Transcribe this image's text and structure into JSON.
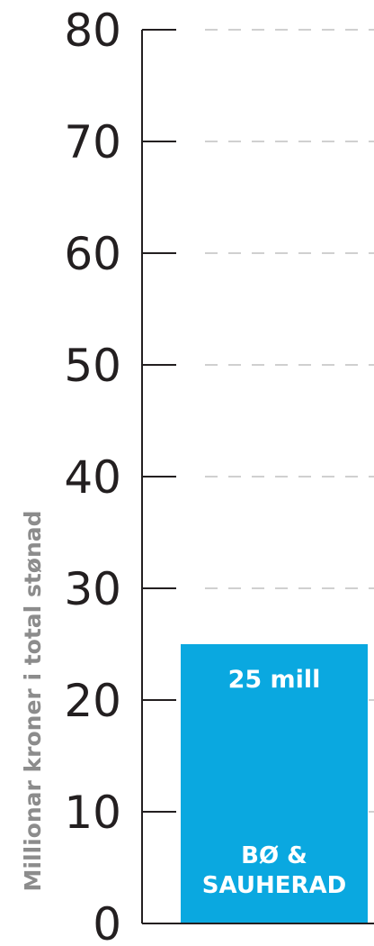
{
  "chart_data": {
    "type": "bar",
    "categories": [
      "BØ & SAUHERAD"
    ],
    "category_lines": [
      [
        "BØ &",
        "SAUHERAD"
      ]
    ],
    "values": [
      25
    ],
    "value_labels": [
      "25 mill"
    ],
    "ylabel": "Millionar kroner i total stønad",
    "xlabel": "",
    "title": "",
    "ylim": [
      0,
      80
    ],
    "yticks": [
      0,
      10,
      20,
      30,
      40,
      50,
      60,
      70,
      80
    ],
    "grid": true,
    "grid_style": "dashed",
    "legend": "none",
    "colors": {
      "bar": "#0aa8e0",
      "axis": "#231f20",
      "grid": "#d0d0d0",
      "ylabel": "#8c8c8c",
      "bar_text": "#ffffff"
    }
  }
}
